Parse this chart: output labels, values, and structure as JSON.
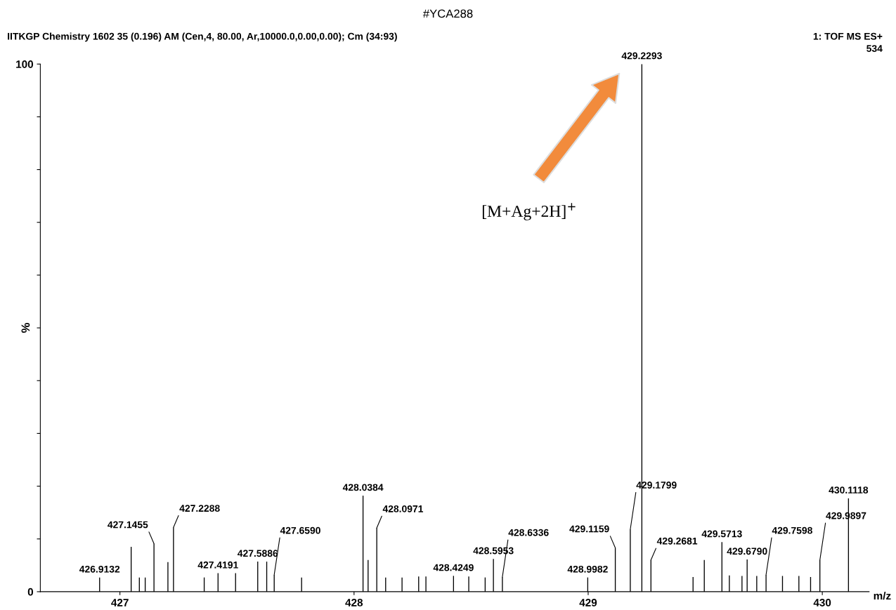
{
  "chart_data": {
    "type": "bar",
    "title": "#YCA288",
    "subtitle": "IITKGP Chemistry 1602 35 (0.196) AM (Cen,4, 80.00, Ar,10000.0,0.00,0.00); Cm (34:93)",
    "xlabel": "m/z",
    "ylabel": "%",
    "x": [
      426.9132,
      427.048,
      427.083,
      427.108,
      427.1455,
      427.205,
      427.2288,
      427.36,
      427.4191,
      427.494,
      427.5886,
      427.627,
      427.659,
      427.776,
      428.0384,
      428.06,
      428.0971,
      428.135,
      428.205,
      428.276,
      428.307,
      428.4249,
      428.49,
      428.56,
      428.5953,
      428.6336,
      428.9982,
      429.1159,
      429.1799,
      429.2293,
      429.2681,
      429.448,
      429.496,
      429.5713,
      429.603,
      429.657,
      429.679,
      429.72,
      429.7598,
      429.83,
      429.9,
      429.95,
      429.9897,
      430.1118
    ],
    "values": [
      2.7,
      8.5,
      2.7,
      2.7,
      9.1,
      5.6,
      12.2,
      2.7,
      3.5,
      3.5,
      5.7,
      5.7,
      3.2,
      2.7,
      18.2,
      6.0,
      12.1,
      2.7,
      2.7,
      2.9,
      2.9,
      3.0,
      2.9,
      2.7,
      6.2,
      2.8,
      2.7,
      8.3,
      11.8,
      100,
      6.0,
      2.8,
      6.0,
      9.4,
      3.1,
      3.0,
      6.1,
      3.0,
      3.2,
      3.0,
      3.0,
      2.8,
      6.0,
      17.7
    ],
    "color": "#000000",
    "xlim": [
      426.66,
      430.2
    ],
    "xticks": [
      427,
      428,
      429,
      430
    ],
    "ylim": [
      0,
      100
    ],
    "yticks": [
      0,
      {
        "value": 10,
        "label": null
      },
      {
        "value": 20,
        "label": null
      },
      {
        "value": 30,
        "label": null
      },
      {
        "value": 40,
        "label": null
      },
      {
        "value": 50,
        "label": null
      },
      {
        "value": 60,
        "label": null
      },
      {
        "value": 70,
        "label": null
      },
      {
        "value": 80,
        "label": null
      },
      {
        "value": 90,
        "label": null
      },
      100
    ],
    "annotations": [
      {
        "text": "426.9132",
        "x": 426.9132,
        "y": 2.7
      },
      {
        "text": "427.1455",
        "x": 427.1455,
        "y": 9.1
      },
      {
        "text": "427.2288",
        "x": 427.2288,
        "y": 12.2
      },
      {
        "text": "427.4191",
        "x": 427.4191,
        "y": 3.5
      },
      {
        "text": "427.5886",
        "x": 427.5886,
        "y": 5.7
      },
      {
        "text": "427.6590",
        "x": 427.659,
        "y": 3.2
      },
      {
        "text": "428.0384",
        "x": 428.0384,
        "y": 18.2
      },
      {
        "text": "428.0971",
        "x": 428.0971,
        "y": 12.1
      },
      {
        "text": "428.4249",
        "x": 428.4249,
        "y": 3.0
      },
      {
        "text": "428.5953",
        "x": 428.5953,
        "y": 6.2
      },
      {
        "text": "428.6336",
        "x": 428.6336,
        "y": 2.8
      },
      {
        "text": "428.9982",
        "x": 428.9982,
        "y": 2.7
      },
      {
        "text": "429.1159",
        "x": 429.1159,
        "y": 8.3
      },
      {
        "text": "429.1799",
        "x": 429.1799,
        "y": 11.8
      },
      {
        "text": "429.2293",
        "x": 429.2293,
        "y": 100
      },
      {
        "text": "429.2681",
        "x": 429.2681,
        "y": 6.0
      },
      {
        "text": "429.5713",
        "x": 429.5713,
        "y": 9.4
      },
      {
        "text": "429.6790",
        "x": 429.679,
        "y": 6.1
      },
      {
        "text": "429.7598",
        "x": 429.7598,
        "y": 3.2
      },
      {
        "text": "429.9897",
        "x": 429.9897,
        "y": 6.0
      },
      {
        "text": "430.1118",
        "x": 430.1118,
        "y": 17.7
      },
      "[M+Ag+2H]$^{+}$",
      "1: TOF MS ES+",
      "534"
    ],
    "grid": false,
    "legend": false
  }
}
